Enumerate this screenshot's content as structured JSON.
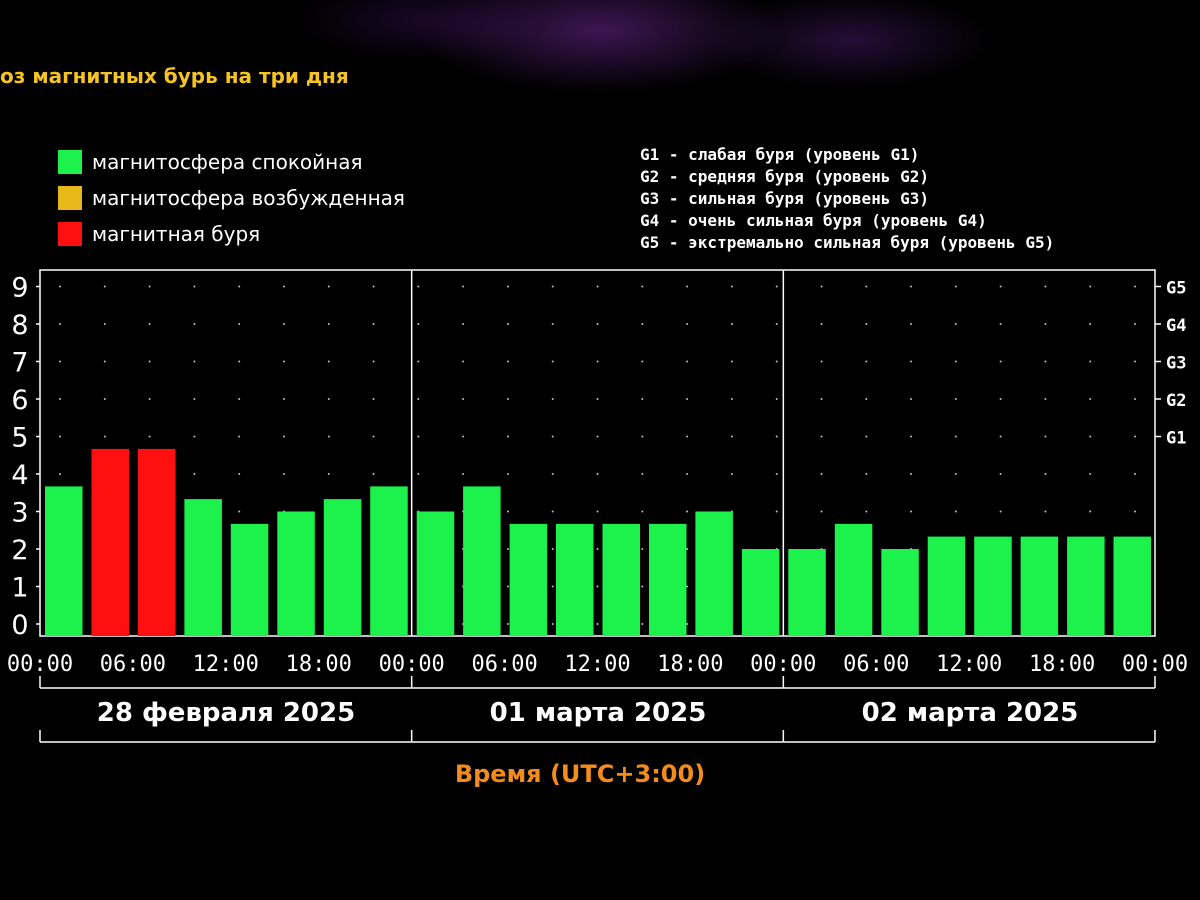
{
  "title": "оз магнитных бурь на три дня",
  "legend": [
    {
      "label": "магнитосфера спокойная",
      "color": "#1cf24b"
    },
    {
      "label": "магнитосфера возбужденная",
      "color": "#e8b81a"
    },
    {
      "label": "магнитная буря",
      "color": "#ff1010"
    }
  ],
  "g_legend": [
    "G1 - слабая буря (уровень G1)",
    "G2 - средняя буря (уровень G2)",
    "G3 - сильная буря (уровень G3)",
    "G4 - очень сильная буря (уровень G4)",
    "G5 - экстремально сильная буря (уровень G5)"
  ],
  "chart_data": {
    "type": "bar",
    "ylim": [
      0,
      9
    ],
    "y_ticks": [
      "0",
      "1",
      "2",
      "3",
      "4",
      "5",
      "6",
      "7",
      "8",
      "9"
    ],
    "g_ticks": [
      {
        "label": "G1",
        "value": 5
      },
      {
        "label": "G2",
        "value": 6
      },
      {
        "label": "G3",
        "value": 7
      },
      {
        "label": "G4",
        "value": 8
      },
      {
        "label": "G5",
        "value": 9
      }
    ],
    "x_ticks": [
      "00:00",
      "06:00",
      "12:00",
      "18:00",
      "00:00",
      "06:00",
      "12:00",
      "18:00",
      "00:00",
      "06:00",
      "12:00",
      "18:00",
      "00:00"
    ],
    "days": [
      "28 февраля 2025",
      "01 марта 2025",
      "02 марта 2025"
    ],
    "xlabel": "Время (UTC+3:00)",
    "grid": true,
    "bars": [
      {
        "value": 3.67,
        "level": "quiet"
      },
      {
        "value": 4.67,
        "level": "storm"
      },
      {
        "value": 4.67,
        "level": "storm"
      },
      {
        "value": 3.33,
        "level": "quiet"
      },
      {
        "value": 2.67,
        "level": "quiet"
      },
      {
        "value": 3.0,
        "level": "quiet"
      },
      {
        "value": 3.33,
        "level": "quiet"
      },
      {
        "value": 3.67,
        "level": "quiet"
      },
      {
        "value": 3.0,
        "level": "quiet"
      },
      {
        "value": 3.67,
        "level": "quiet"
      },
      {
        "value": 2.67,
        "level": "quiet"
      },
      {
        "value": 2.67,
        "level": "quiet"
      },
      {
        "value": 2.67,
        "level": "quiet"
      },
      {
        "value": 2.67,
        "level": "quiet"
      },
      {
        "value": 3.0,
        "level": "quiet"
      },
      {
        "value": 2.0,
        "level": "quiet"
      },
      {
        "value": 2.0,
        "level": "quiet"
      },
      {
        "value": 2.67,
        "level": "quiet"
      },
      {
        "value": 2.0,
        "level": "quiet"
      },
      {
        "value": 2.33,
        "level": "quiet"
      },
      {
        "value": 2.33,
        "level": "quiet"
      },
      {
        "value": 2.33,
        "level": "quiet"
      },
      {
        "value": 2.33,
        "level": "quiet"
      },
      {
        "value": 2.33,
        "level": "quiet"
      }
    ],
    "colors": {
      "quiet": "#1cf24b",
      "active": "#e8b81a",
      "storm": "#ff1010"
    }
  }
}
